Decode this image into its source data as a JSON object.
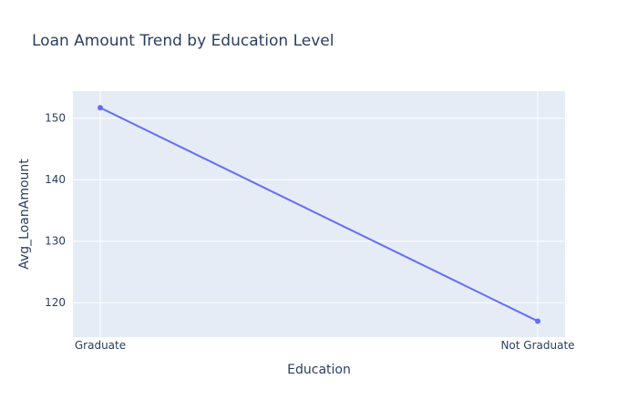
{
  "chart_data": {
    "type": "line",
    "title": "Loan Amount Trend by Education Level",
    "xlabel": "Education",
    "ylabel": "Avg_LoanAmount",
    "categories": [
      "Graduate",
      "Not Graduate"
    ],
    "series": [
      {
        "values": [
          151.7,
          117.0
        ]
      }
    ],
    "ylim": [
      114.4,
      154.4
    ],
    "yticks": [
      120,
      130,
      140,
      150
    ],
    "ytick_labels": [
      "120",
      "130",
      "140",
      "150"
    ],
    "grid": true,
    "colors": {
      "plot_bg": "#e5ecf6",
      "grid": "#ffffff",
      "line": "#636efa",
      "text": "#2a3f5f"
    }
  }
}
